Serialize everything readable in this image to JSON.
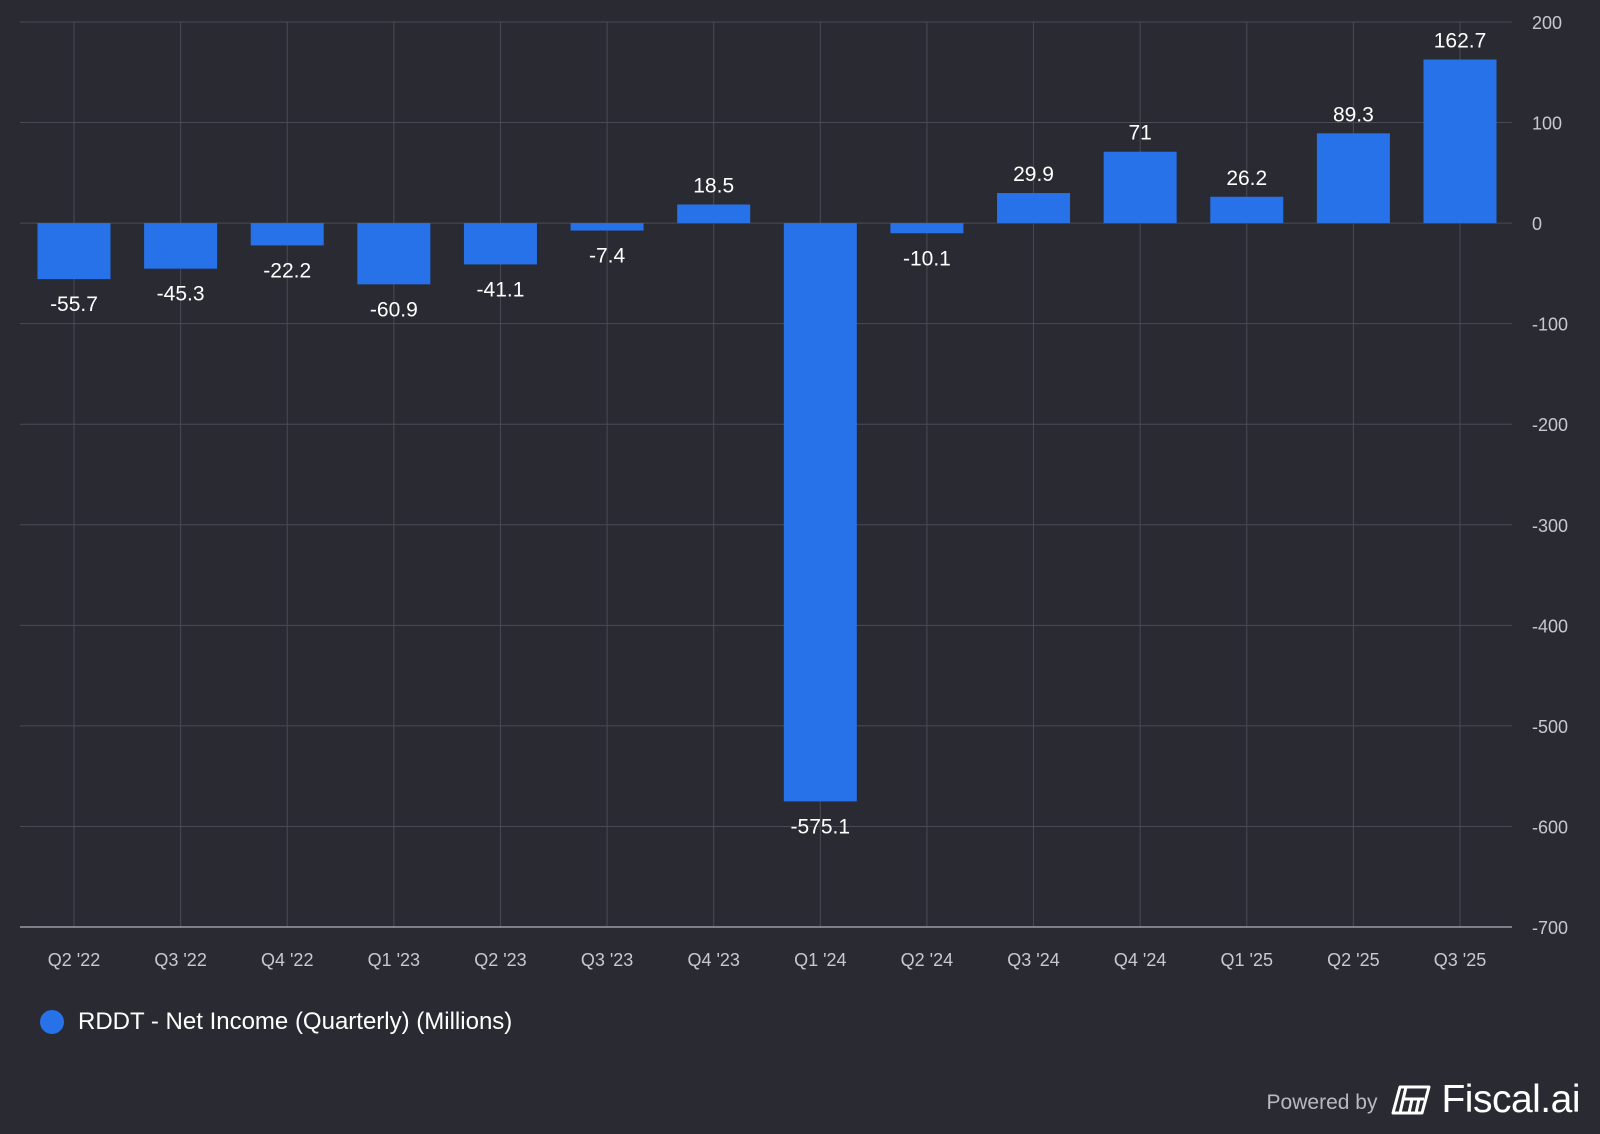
{
  "colors": {
    "background": "#2a2a33",
    "bar": "#2772e8",
    "grid": "#4a4a55",
    "axis_line": "#9a9aa5",
    "tick_text": "#c8c8d0",
    "label_text": "#ffffff"
  },
  "chart_data": {
    "type": "bar",
    "categories": [
      "Q2 '22",
      "Q3 '22",
      "Q4 '22",
      "Q1 '23",
      "Q2 '23",
      "Q3 '23",
      "Q4 '23",
      "Q1 '24",
      "Q2 '24",
      "Q3 '24",
      "Q4 '24",
      "Q1 '25",
      "Q2 '25",
      "Q3 '25"
    ],
    "series": [
      {
        "name": "RDDT - Net Income (Quarterly) (Millions)",
        "values": [
          -55.7,
          -45.3,
          -22.2,
          -60.9,
          -41.1,
          -7.4,
          18.5,
          -575.1,
          -10.1,
          29.9,
          71,
          26.2,
          89.3,
          162.7
        ],
        "labels": [
          "-55.7",
          "-45.3",
          "-22.2",
          "-60.9",
          "-41.1",
          "-7.4",
          "18.5",
          "-575.1",
          "-10.1",
          "29.9",
          "71",
          "26.2",
          "89.3",
          "162.7"
        ]
      }
    ],
    "ylim": [
      -700,
      200
    ],
    "yticks": [
      200,
      100,
      0,
      -100,
      -200,
      -300,
      -400,
      -500,
      -600,
      -700
    ],
    "y_axis_position": "right",
    "grid": true,
    "legend_placement": "bottom-left"
  },
  "legend": {
    "label": "RDDT - Net Income (Quarterly) (Millions)"
  },
  "branding": {
    "powered_by": "Powered by",
    "name": "Fiscal.ai",
    "icon": "fiscal-ai-logo-icon"
  }
}
